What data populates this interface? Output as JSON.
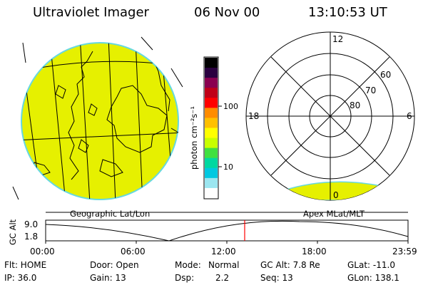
{
  "header": {
    "instrument": "Ultraviolet Imager",
    "date": "06 Nov 00",
    "time": "13:10:53 UT"
  },
  "geo_panel": {
    "label": "Geographic Lat/Lon"
  },
  "colorbar": {
    "unit_label": "photon cm⁻²s⁻¹",
    "ticks": [
      "100",
      "10"
    ],
    "colors": [
      "#000000",
      "#2a0040",
      "#8a0050",
      "#c00018",
      "#ff0000",
      "#ff8c00",
      "#ffc000",
      "#ffff00",
      "#c8ff00",
      "#40e040",
      "#00d8a0",
      "#00c8e0",
      "#9be6f0",
      "#ffffff"
    ]
  },
  "polar_panel": {
    "label": "Apex MLat/MLT",
    "mlt_labels": {
      "top": "12",
      "left": "18",
      "right": "6",
      "bottom": "0"
    },
    "lat_labels": [
      "60",
      "70",
      "80"
    ]
  },
  "timeline": {
    "y_label": "GC Alt",
    "y_ticks": [
      "9.0",
      "1.8"
    ],
    "x_ticks": [
      "00:00",
      "06:00",
      "12:00",
      "18:00",
      "23:59"
    ],
    "current_time_hours": 13.18
  },
  "info": {
    "col1": [
      "Flt: HOME",
      "IP: 36.0"
    ],
    "col2": [
      "Door: Open",
      "Gain: 13"
    ],
    "col3_a": [
      "Mode:",
      "Normal"
    ],
    "col3_b": [
      "Dsp:",
      "2.2"
    ],
    "col4": [
      "GC Alt: 7.8 Re",
      "Seq: 13"
    ],
    "col5": [
      "GLat: -11.0",
      "GLon: 138.1"
    ]
  },
  "colors": {
    "fill_yellow": "#e6f000",
    "limb_cyan": "#66d8e0",
    "marker_red": "#ff0000"
  }
}
